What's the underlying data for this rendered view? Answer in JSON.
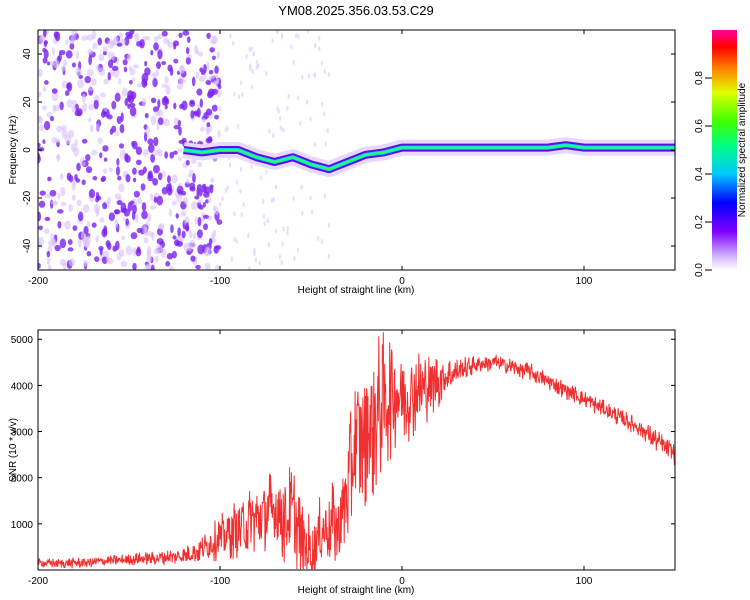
{
  "title": "YM08.2025.356.03.53.C29",
  "colors": {
    "snr_line": "#f03030",
    "spectrogram_trace": "#5a10e0",
    "frame": "#000000"
  },
  "chart_data": [
    {
      "type": "heatmap",
      "name": "spectrogram",
      "xlabel": "Height of straight line (km)",
      "ylabel": "Frequency (Hz)",
      "xlim": [
        -200,
        150
      ],
      "ylim": [
        -50,
        50
      ],
      "xticks": [
        -200,
        -100,
        0,
        100
      ],
      "xtick_labels": [
        "-200",
        "-100",
        "0",
        "100"
      ],
      "yticks": [
        -40,
        -20,
        0,
        20,
        40
      ],
      "ytick_labels": [
        "-40",
        "-20",
        "0",
        "20",
        "40"
      ],
      "trace": {
        "x": [
          -120,
          -110,
          -100,
          -90,
          -80,
          -70,
          -60,
          -50,
          -40,
          -30,
          -20,
          -10,
          0,
          20,
          40,
          60,
          80,
          90,
          100,
          120,
          150
        ],
        "frequency": [
          0,
          -1,
          0,
          0,
          -3,
          -5,
          -3,
          -6,
          -8,
          -5,
          -2,
          -1,
          1,
          1,
          1,
          1,
          1,
          2,
          1,
          1,
          1
        ]
      },
      "colorbar": {
        "label": "Normalized spectral amplitude",
        "range": [
          0,
          1
        ],
        "ticks": [
          0.0,
          0.2,
          0.4,
          0.6,
          0.8
        ],
        "tick_labels": [
          "0.0",
          "0.2",
          "0.4",
          "0.6",
          "0.8"
        ]
      }
    },
    {
      "type": "line",
      "name": "snr",
      "xlabel": "Height of straight line (km)",
      "ylabel": "SNR (10 * v/v)",
      "xlim": [
        -200,
        150
      ],
      "ylim": [
        0,
        5200
      ],
      "xticks": [
        -200,
        -100,
        0,
        100
      ],
      "xtick_labels": [
        "-200",
        "-100",
        "0",
        "100"
      ],
      "yticks": [
        1000,
        2000,
        3000,
        4000,
        5000
      ],
      "ytick_labels": [
        "1000",
        "2000",
        "3000",
        "4000",
        "5000"
      ],
      "series": [
        {
          "name": "SNR",
          "x": [
            -200,
            -180,
            -160,
            -140,
            -120,
            -110,
            -100,
            -90,
            -80,
            -70,
            -65,
            -60,
            -55,
            -50,
            -45,
            -40,
            -35,
            -30,
            -25,
            -20,
            -15,
            -10,
            -5,
            0,
            5,
            10,
            20,
            30,
            40,
            50,
            60,
            70,
            80,
            90,
            100,
            110,
            120,
            130,
            140,
            150
          ],
          "values": [
            150,
            150,
            200,
            250,
            300,
            450,
            700,
            900,
            1100,
            1300,
            1100,
            1200,
            600,
            400,
            800,
            1000,
            900,
            1800,
            2800,
            3000,
            3300,
            3600,
            3900,
            3800,
            3800,
            3900,
            4100,
            4300,
            4450,
            4500,
            4400,
            4300,
            4100,
            3900,
            3700,
            3500,
            3300,
            3100,
            2800,
            2500
          ],
          "amplitude": [
            100,
            120,
            120,
            150,
            200,
            300,
            500,
            700,
            800,
            1000,
            1000,
            1200,
            900,
            800,
            800,
            900,
            1000,
            1400,
            1600,
            1800,
            1800,
            1600,
            1400,
            1200,
            1000,
            900,
            600,
            300,
            200,
            200,
            200,
            200,
            200,
            200,
            200,
            200,
            200,
            200,
            250,
            250
          ]
        }
      ]
    }
  ]
}
